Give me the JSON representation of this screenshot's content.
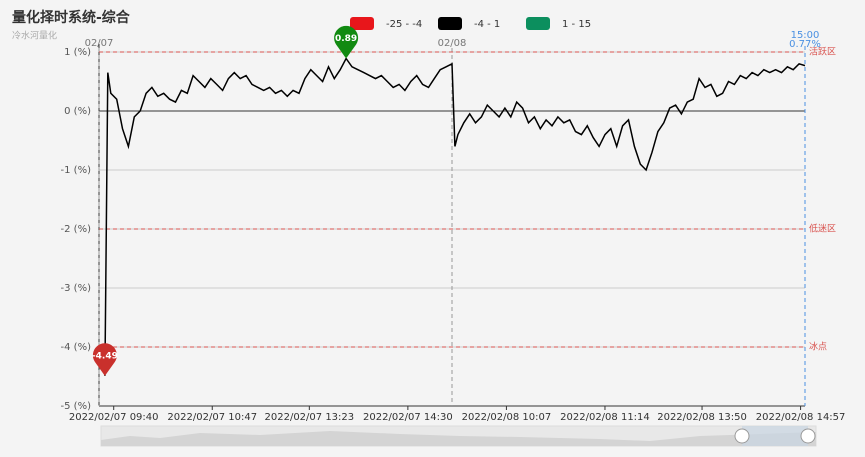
{
  "chart_data": {
    "type": "line",
    "title": "量化择时系统-综合",
    "subtitle": "冷水河量化",
    "legend": [
      {
        "label": "-25 - -4",
        "color": "#e8161b"
      },
      {
        "label": "-4 - 1",
        "color": "#000000"
      },
      {
        "label": "1 - 15",
        "color": "#0c8f5e"
      }
    ],
    "color": "#000000",
    "x": [
      4,
      6,
      8,
      12,
      16,
      20,
      24,
      28,
      32,
      36,
      40,
      44,
      48,
      52,
      56,
      60,
      64,
      68,
      72,
      76,
      80,
      84,
      88,
      92,
      96,
      100,
      104,
      108,
      112,
      116,
      120,
      124,
      128,
      132,
      136,
      140,
      144,
      148,
      152,
      156,
      160,
      164,
      168,
      172,
      176,
      180,
      184,
      188,
      192,
      196,
      200,
      204,
      208,
      212,
      216,
      220,
      224,
      228,
      232,
      236,
      240,
      242,
      244,
      248,
      252,
      256,
      260,
      264,
      268,
      272,
      276,
      280,
      284,
      288,
      292,
      296,
      300,
      304,
      308,
      312,
      316,
      320,
      324,
      328,
      332,
      336,
      340,
      344,
      348,
      352,
      356,
      360,
      364,
      368,
      372,
      376,
      380,
      384,
      388,
      392,
      396,
      400,
      404,
      408,
      412,
      416,
      420,
      424,
      428,
      432,
      436,
      440,
      444,
      448,
      452,
      456,
      460,
      464,
      468,
      472,
      476,
      480
    ],
    "values": [
      -4.49,
      0.65,
      0.3,
      0.2,
      -0.3,
      -0.6,
      -0.1,
      0.0,
      0.3,
      0.4,
      0.25,
      0.3,
      0.2,
      0.15,
      0.35,
      0.3,
      0.6,
      0.5,
      0.4,
      0.55,
      0.45,
      0.35,
      0.55,
      0.65,
      0.55,
      0.6,
      0.45,
      0.4,
      0.35,
      0.4,
      0.3,
      0.35,
      0.25,
      0.35,
      0.3,
      0.55,
      0.7,
      0.6,
      0.5,
      0.75,
      0.55,
      0.7,
      0.89,
      0.75,
      0.7,
      0.65,
      0.6,
      0.55,
      0.6,
      0.5,
      0.4,
      0.45,
      0.35,
      0.5,
      0.6,
      0.45,
      0.4,
      0.55,
      0.7,
      0.75,
      0.8,
      -0.6,
      -0.4,
      -0.2,
      -0.05,
      -0.2,
      -0.1,
      0.1,
      0.0,
      -0.1,
      0.05,
      -0.1,
      0.15,
      0.05,
      -0.2,
      -0.1,
      -0.3,
      -0.15,
      -0.25,
      -0.1,
      -0.2,
      -0.15,
      -0.35,
      -0.4,
      -0.25,
      -0.45,
      -0.6,
      -0.4,
      -0.3,
      -0.6,
      -0.25,
      -0.15,
      -0.6,
      -0.9,
      -1.0,
      -0.7,
      -0.35,
      -0.2,
      0.05,
      0.1,
      -0.05,
      0.15,
      0.2,
      0.55,
      0.4,
      0.45,
      0.25,
      0.3,
      0.5,
      0.45,
      0.6,
      0.55,
      0.65,
      0.6,
      0.7,
      0.65,
      0.7,
      0.65,
      0.75,
      0.7,
      0.8,
      0.77
    ],
    "xlim": [
      0,
      480
    ],
    "xticks": [
      {
        "value": 10,
        "label": "2022/02/07 09:40"
      },
      {
        "value": 77,
        "label": "2022/02/07 10:47"
      },
      {
        "value": 143,
        "label": "2022/02/07 13:23"
      },
      {
        "value": 210,
        "label": "2022/02/07 14:30"
      },
      {
        "value": 277,
        "label": "2022/02/08 10:07"
      },
      {
        "value": 344,
        "label": "2022/02/08 11:14"
      },
      {
        "value": 410,
        "label": "2022/02/08 13:50"
      },
      {
        "value": 477,
        "label": "2022/02/08 14:57"
      }
    ],
    "ylim": [
      -5,
      1
    ],
    "yticks": [
      {
        "value": 1,
        "label": "1 (%)"
      },
      {
        "value": 0,
        "label": "0 (%)"
      },
      {
        "value": -1,
        "label": "-1 (%)"
      },
      {
        "value": -2,
        "label": "-2 (%)"
      },
      {
        "value": -3,
        "label": "-3 (%)"
      },
      {
        "value": -4,
        "label": "-4 (%)"
      },
      {
        "value": -5,
        "label": "-5 (%)"
      }
    ],
    "grid": true,
    "markLines": [
      {
        "value": 1,
        "label": "活跃区"
      },
      {
        "value": -2,
        "label": "低迷区"
      },
      {
        "value": -4,
        "label": "冰点"
      }
    ],
    "markPoints": [
      {
        "x": 4,
        "value": -4.49,
        "color": "#c9302c"
      },
      {
        "x": 168,
        "value": 0.89,
        "color": "#118a11"
      }
    ],
    "dayMarkers": [
      {
        "x": 0,
        "label": "02/07"
      },
      {
        "x": 240,
        "label": "02/08"
      }
    ],
    "endLabel": {
      "x": 480,
      "time": "15:00",
      "value": 0.77,
      "label": "0.77%"
    }
  }
}
